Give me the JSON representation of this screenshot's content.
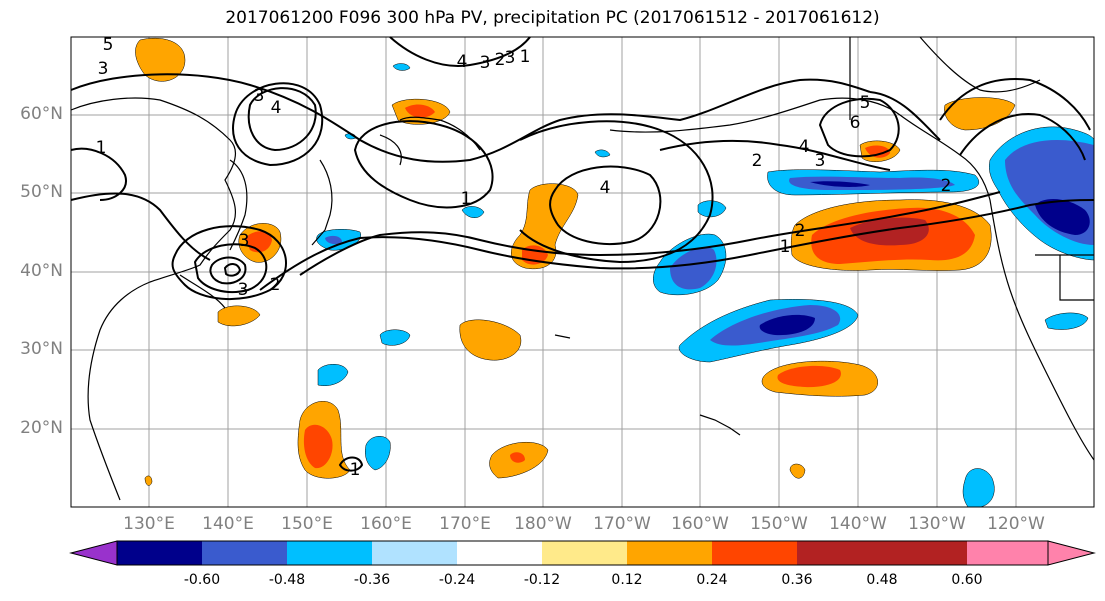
{
  "title": "2017061200 F096 300 hPa PV, precipitation PC (2017061512 - 2017061612)",
  "map": {
    "lat_labels": [
      "60°N",
      "50°N",
      "40°N",
      "30°N",
      "20°N"
    ],
    "lon_labels": [
      "130°E",
      "140°E",
      "150°E",
      "160°E",
      "170°E",
      "180°W",
      "170°W",
      "160°W",
      "150°W",
      "140°W",
      "130°W",
      "120°W"
    ],
    "contour_labels": [
      "5",
      "3",
      "1",
      "3",
      "4",
      "3",
      "2",
      "1",
      "1",
      "4",
      "2",
      "1",
      "2",
      "3",
      "4",
      "5",
      "6",
      "2",
      "4",
      "3",
      "3",
      "2",
      "3",
      "1"
    ]
  },
  "colorbar": {
    "colors": [
      "#9932CC",
      "#00008B",
      "#3A5BCE",
      "#00BFFF",
      "#B0E2FF",
      "#FFFFFF",
      "#FFEA8A",
      "#FFA500",
      "#FF4500",
      "#B22222",
      "#FF82AB"
    ],
    "tick_labels": [
      "-0.60",
      "-0.48",
      "-0.36",
      "-0.24",
      "-0.12",
      "0.12",
      "0.24",
      "0.36",
      "0.48",
      "0.60"
    ]
  }
}
